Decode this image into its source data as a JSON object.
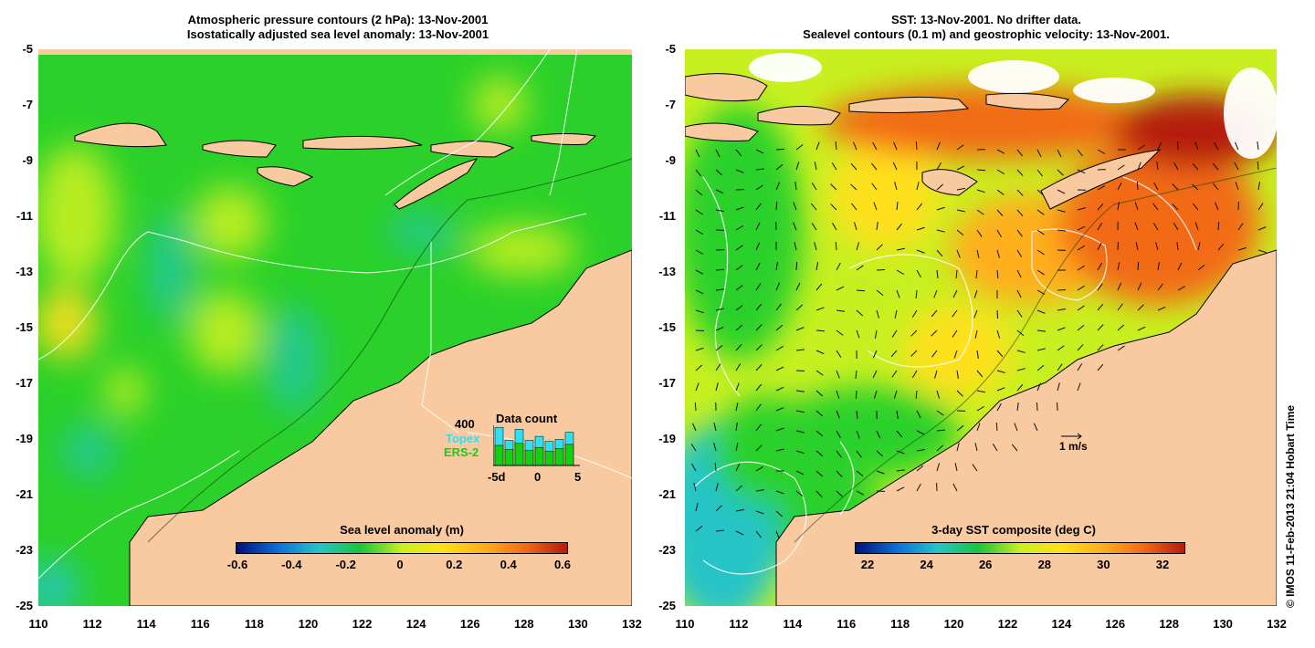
{
  "left_panel": {
    "title_line1": "Atmospheric pressure contours (2 hPa): 13-Nov-2001",
    "title_line2": "Isostatically adjusted sea level anomaly: 13-Nov-2001",
    "colorbar": {
      "title": "Sea level anomaly (m)",
      "ticks": [
        "-0.6",
        "-0.4",
        "-0.2",
        "0",
        "0.2",
        "0.4",
        "0.6"
      ],
      "colors": [
        "#00107a",
        "#0d6fd6",
        "#27c4c7",
        "#1cc43a",
        "#c8f020",
        "#ffe01a",
        "#ffae1f",
        "#f26a16",
        "#b51b0d"
      ]
    },
    "data_count": {
      "title": "Data count",
      "max_label": "400",
      "series": [
        "Topex",
        "ERS-2"
      ],
      "series_colors": [
        "#31e0f0",
        "#12d112"
      ],
      "x_ticks": [
        "-5d",
        "0",
        "5"
      ],
      "topex_values": [
        380,
        250,
        360,
        250,
        290,
        240,
        260,
        330
      ],
      "ers2_values": [
        200,
        160,
        220,
        150,
        180,
        140,
        170,
        210
      ]
    }
  },
  "right_panel": {
    "title_line1": "SST: 13-Nov-2001. No drifter data.",
    "title_line2": "Sealevel contours (0.1 m) and geostrophic velocity: 13-Nov-2001.",
    "colorbar": {
      "title": "3-day SST composite (deg C)",
      "ticks": [
        "22",
        "24",
        "26",
        "28",
        "30",
        "32"
      ],
      "colors": [
        "#00107a",
        "#0d6fd6",
        "#27c4c7",
        "#1cc43a",
        "#c8f020",
        "#ffe01a",
        "#ffae1f",
        "#f26a16",
        "#b51b0d"
      ]
    },
    "velocity_scale_label": "1 m/s"
  },
  "axes": {
    "lat_ticks": [
      "-5",
      "-7",
      "-9",
      "-11",
      "-13",
      "-15",
      "-17",
      "-19",
      "-21",
      "-23",
      "-25"
    ],
    "lon_ticks": [
      "110",
      "112",
      "114",
      "116",
      "118",
      "120",
      "122",
      "124",
      "126",
      "128",
      "130",
      "132"
    ]
  },
  "credit": "© IMOS 11-Feb-2013 21:04 Hobart Time",
  "colors": {
    "land": "#f9c9a0",
    "ocean_base": "#2bd12a",
    "cloud": "#ffffff"
  }
}
